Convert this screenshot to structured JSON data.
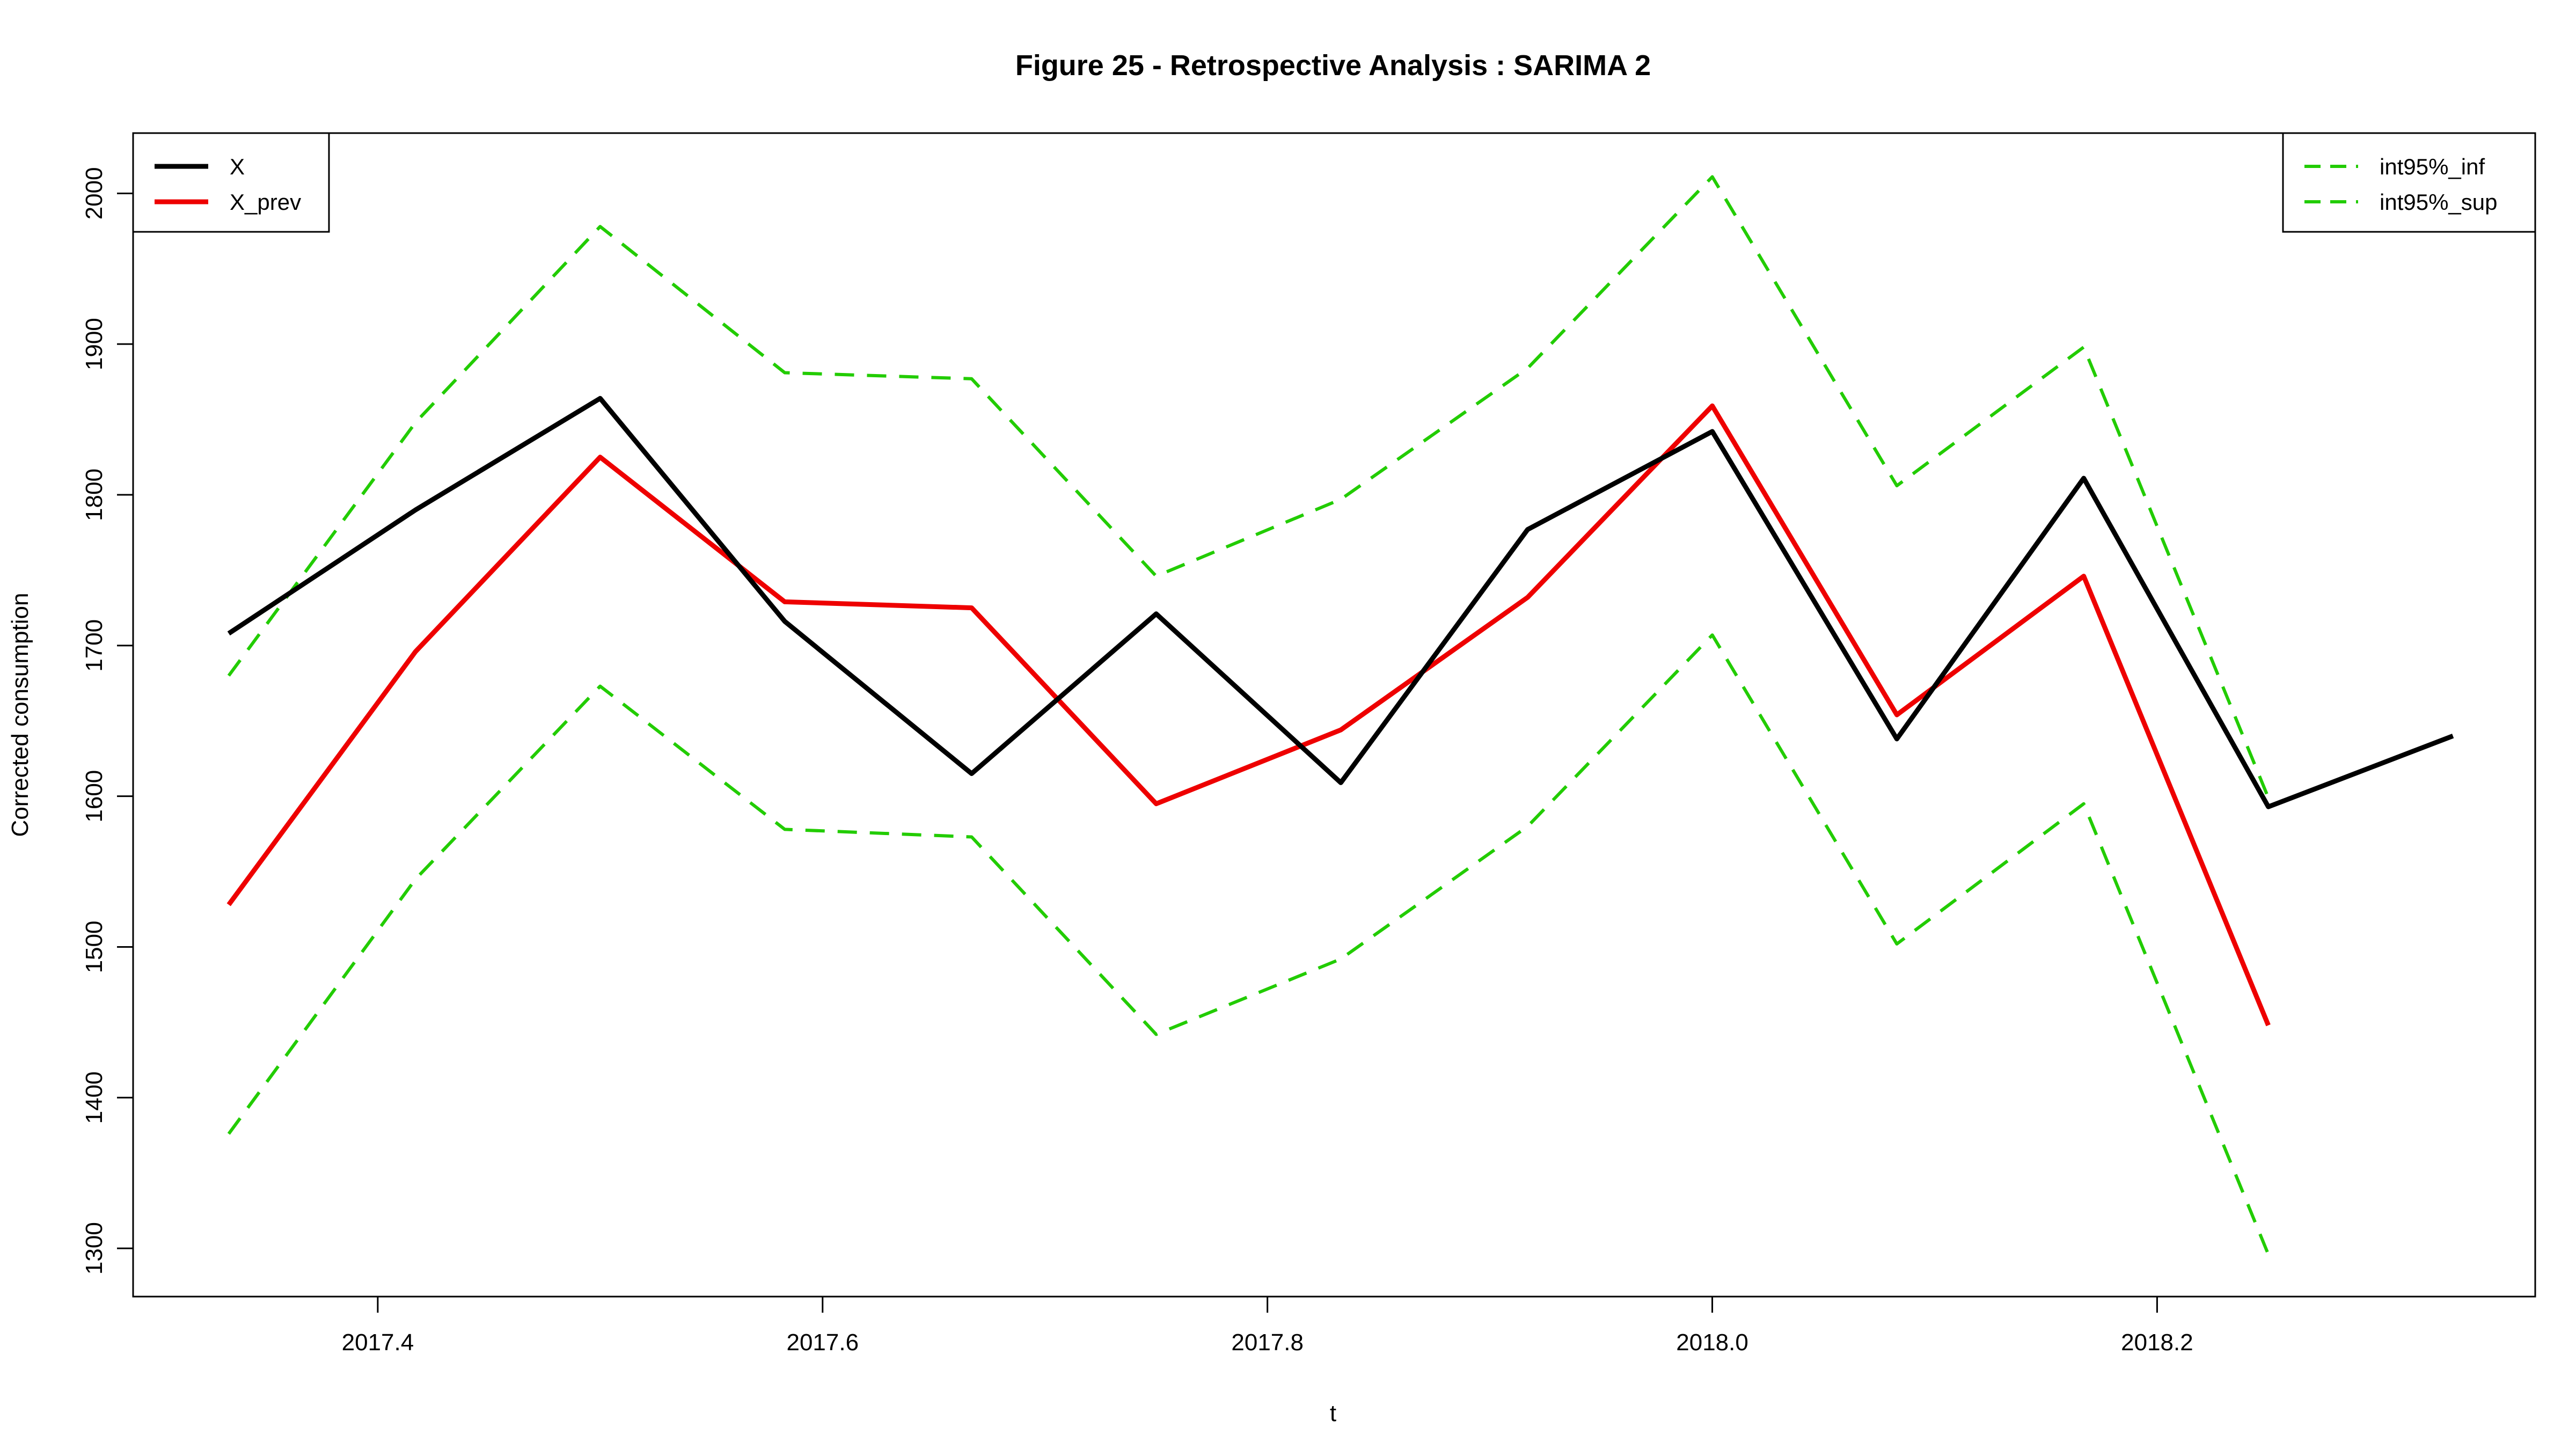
{
  "chart_data": {
    "type": "line",
    "title": "Figure 25 - Retrospective Analysis : SARIMA 2",
    "xlabel": "t",
    "ylabel": "Corrected consumption",
    "xlim": [
      2017.29,
      2018.37
    ],
    "ylim": [
      1268,
      2040
    ],
    "x_ticks": [
      2017.4,
      2017.6,
      2017.8,
      2018.0,
      2018.2
    ],
    "x_tick_labels": [
      "2017.4",
      "2017.6",
      "2017.8",
      "2018.0",
      "2018.2"
    ],
    "y_ticks": [
      1300,
      1400,
      1500,
      1600,
      1700,
      1800,
      1900,
      2000
    ],
    "y_tick_labels": [
      "1300",
      "1400",
      "1500",
      "1600",
      "1700",
      "1800",
      "1900",
      "2000"
    ],
    "grid": false,
    "series": [
      {
        "name": "X",
        "color": "#000000",
        "dash": "solid",
        "x": [
          2017.333,
          2017.417,
          2017.5,
          2017.583,
          2017.667,
          2017.75,
          2017.833,
          2017.917,
          2018.0,
          2018.083,
          2018.167,
          2018.25,
          2018.333
        ],
        "values": [
          1708,
          1790,
          1864,
          1716,
          1615,
          1721,
          1609,
          1777,
          1842,
          1638,
          1811,
          1593,
          1640
        ]
      },
      {
        "name": "X_prev",
        "color": "#ee0000",
        "dash": "solid",
        "x": [
          2017.333,
          2017.417,
          2017.5,
          2017.583,
          2017.667,
          2017.75,
          2017.833,
          2017.917,
          2018.0,
          2018.083,
          2018.167,
          2018.25
        ],
        "values": [
          1528,
          1696,
          1825,
          1729,
          1725,
          1595,
          1644,
          1732,
          1859,
          1654,
          1746,
          1448
        ]
      },
      {
        "name": "int95%_inf",
        "color": "#22cc00",
        "dash": "dashed",
        "x": [
          2017.333,
          2017.417,
          2017.5,
          2017.583,
          2017.667,
          2017.75,
          2017.833,
          2017.917,
          2018.0,
          2018.083,
          2018.167,
          2018.25
        ],
        "values": [
          1376,
          1545,
          1673,
          1578,
          1573,
          1442,
          1492,
          1580,
          1707,
          1502,
          1595,
          1296
        ]
      },
      {
        "name": "int95%_sup",
        "color": "#22cc00",
        "dash": "dashed",
        "x": [
          2017.333,
          2017.417,
          2017.5,
          2017.583,
          2017.667,
          2017.75,
          2017.833,
          2017.917,
          2018.0,
          2018.083,
          2018.167,
          2018.25
        ],
        "values": [
          1680,
          1848,
          1978,
          1881,
          1877,
          1746,
          1797,
          1884,
          2011,
          1806,
          1898,
          1599
        ]
      }
    ],
    "legends": [
      {
        "placement": "top-left",
        "entries": [
          0,
          1
        ]
      },
      {
        "placement": "top-right",
        "entries": [
          2,
          3
        ]
      }
    ]
  }
}
